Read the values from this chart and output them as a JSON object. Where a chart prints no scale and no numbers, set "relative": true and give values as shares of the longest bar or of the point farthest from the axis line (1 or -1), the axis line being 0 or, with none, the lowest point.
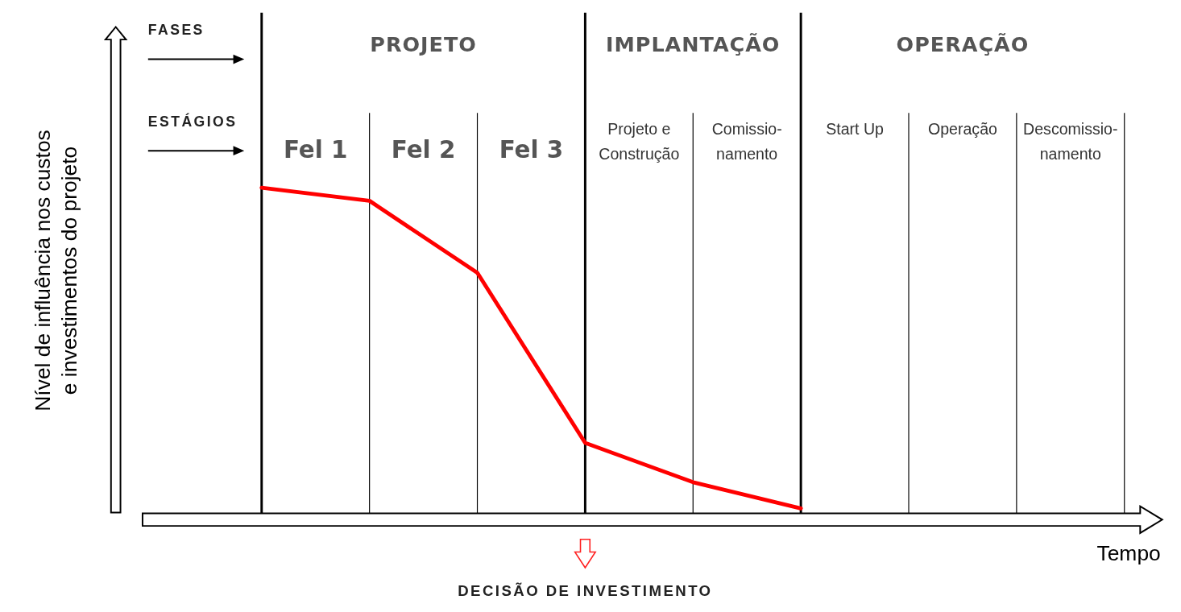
{
  "chart_data": {
    "type": "line",
    "relative": true,
    "grid": "x",
    "xlabel": "Tempo",
    "ylabel": "Nível de influência nos custos e investimentos do projeto",
    "categories": [
      null,
      null,
      null,
      null,
      null,
      null,
      null,
      null,
      null
    ],
    "series": [
      {
        "color": "#ff0000",
        "values": [
          1,
          0.96,
          0.74,
          0.22,
          0.1,
          0.02,
          null,
          null,
          null
        ]
      }
    ],
    "annotations": [
      "FASES",
      "ESTÁGIOS",
      "PROJETO",
      "IMPLANTAÇÃO",
      "OPERAÇÃO",
      "Fel 1",
      "Fel 2",
      "Fel 3",
      "Projeto e Construção",
      "Comissio-namento",
      "Start Up",
      "Operação",
      "Descomissio-namento",
      "DECISÃO DE INVESTIMENTO"
    ]
  }
}
